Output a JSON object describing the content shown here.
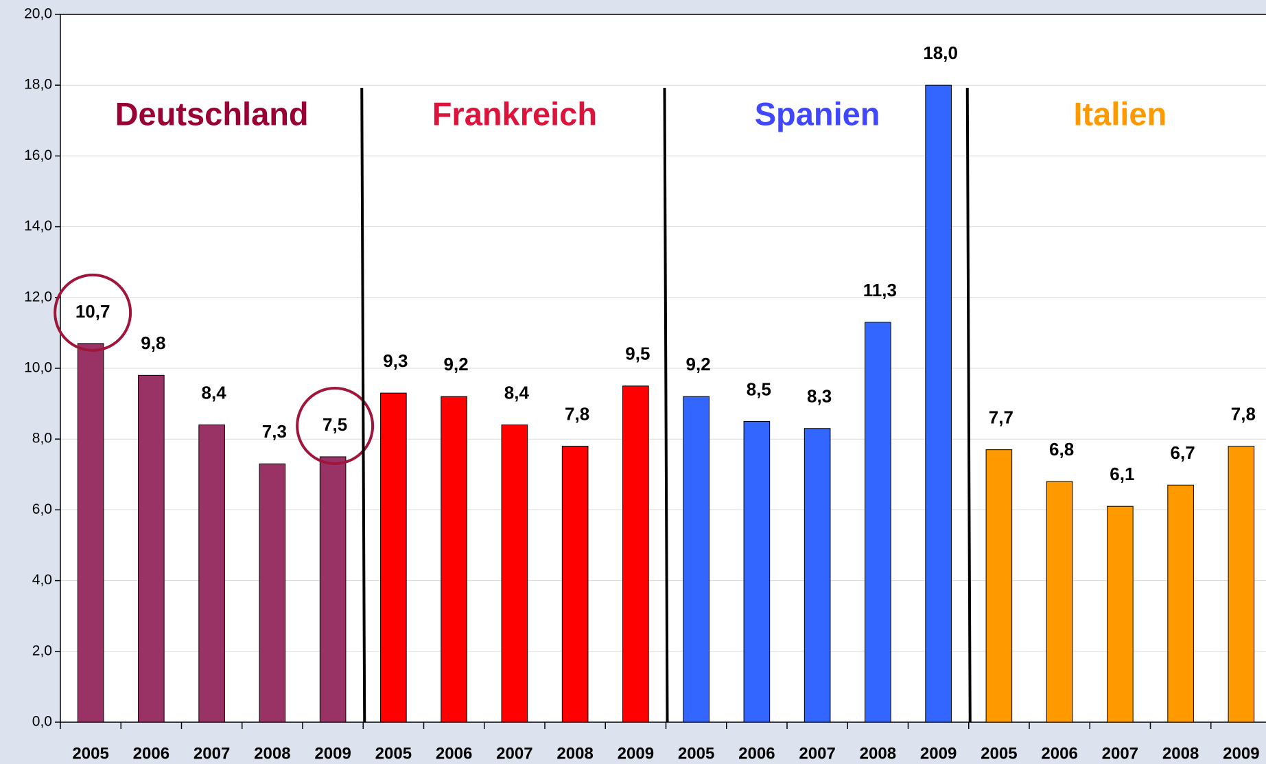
{
  "chart_data": {
    "type": "bar",
    "categories": [
      "2005",
      "2006",
      "2007",
      "2008",
      "2009"
    ],
    "series": [
      {
        "name": "Deutschland",
        "color": "#993366",
        "label_color": "#990033",
        "values": [
          10.7,
          9.8,
          8.4,
          7.3,
          7.5
        ],
        "value_labels": [
          "10,7",
          "9,8",
          "8,4",
          "7,3",
          "7,5"
        ]
      },
      {
        "name": "Frankreich",
        "color": "#ff0000",
        "label_color": "#dc143c",
        "values": [
          9.3,
          9.2,
          8.4,
          7.8,
          9.5
        ],
        "value_labels": [
          "9,3",
          "9,2",
          "8,4",
          "7,8",
          "9,5"
        ]
      },
      {
        "name": "Spanien",
        "color": "#3366ff",
        "label_color": "#3f48ff",
        "values": [
          9.2,
          8.5,
          8.3,
          11.3,
          18.0
        ],
        "value_labels": [
          "9,2",
          "8,5",
          "8,3",
          "11,3",
          "18,0"
        ]
      },
      {
        "name": "Italien",
        "color": "#ff9900",
        "label_color": "#ff9900",
        "values": [
          7.7,
          6.8,
          6.1,
          6.7,
          7.8
        ],
        "value_labels": [
          "7,7",
          "6,8",
          "6,1",
          "6,7",
          "7,8"
        ]
      }
    ],
    "ylim": [
      0,
      20
    ],
    "yticks": [
      {
        "value": 0,
        "label": "0,0"
      },
      {
        "value": 2,
        "label": "2,0"
      },
      {
        "value": 4,
        "label": "4,0"
      },
      {
        "value": 6,
        "label": "6,0"
      },
      {
        "value": 8,
        "label": "8,0"
      },
      {
        "value": 10,
        "label": "10,0"
      },
      {
        "value": 12,
        "label": "12,0"
      },
      {
        "value": 14,
        "label": "14,0"
      },
      {
        "value": 16,
        "label": "16,0"
      },
      {
        "value": 18,
        "label": "18,0"
      },
      {
        "value": 20,
        "label": "20,0"
      }
    ],
    "grid": true
  }
}
